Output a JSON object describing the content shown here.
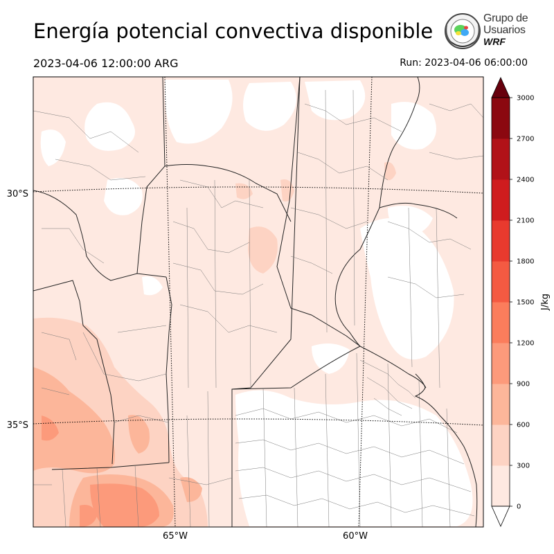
{
  "title": "Energía potencial convectiva disponible",
  "valid_time": "2023-04-06 12:00:00 ARG",
  "run_time": "Run: 2023-04-06 06:00:00",
  "logo": {
    "line1": "Grupo de",
    "line2": "Usuarios",
    "line3": "WRF"
  },
  "map": {
    "lat_labels": [
      {
        "text": "30°S",
        "lat": -30
      },
      {
        "text": "35°S",
        "lat": -35
      }
    ],
    "lon_labels": [
      {
        "text": "65°W",
        "lon": -65
      },
      {
        "text": "60°W",
        "lon": -60
      }
    ]
  },
  "colorbar": {
    "units": "J/kg",
    "levels": [
      0,
      300,
      600,
      900,
      1200,
      1500,
      1800,
      2100,
      2400,
      2700,
      3000
    ],
    "tick_labels": [
      "0",
      "300",
      "600",
      "900",
      "1200",
      "1500",
      "1800",
      "2100",
      "2400",
      "2700",
      "3000"
    ],
    "colors": [
      "#fee9e1",
      "#fdd3c3",
      "#fcb69a",
      "#fc9a7b",
      "#fb7d5c",
      "#f45a42",
      "#e83a2e",
      "#cf1c1e",
      "#b11218",
      "#8b0810"
    ],
    "extend_color": "#67000d"
  }
}
